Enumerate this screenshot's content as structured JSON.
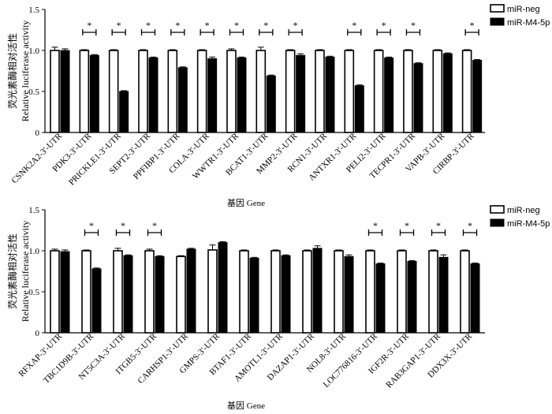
{
  "chart_data": [
    {
      "type": "bar",
      "panel": "top",
      "ylabel_cn": "荧光素酶相对活性",
      "ylabel_en": "Relative luciferase activity",
      "xlabel": "基因  Gene",
      "ylim": [
        0,
        1.5
      ],
      "yticks": [
        "0",
        "0.5",
        "1.0",
        "1.5"
      ],
      "categories": [
        "CSNK2A2-3'-UTR",
        "PDK3-3'-UTR",
        "PRICKLE1-3'-UTR",
        "SEPT2-3'-UTR",
        "PPFIBP1-3'-UTR",
        "COLA-3'-UTR",
        "WWTR1-3'-UTR",
        "BCAT1-3'-UTR",
        "MMP2-3'-UTR",
        "RCN1-3'-UTR",
        "ANTXR1-3'-UTR",
        "PELI2-3'-UTR",
        "TECPR1-3'-UTR",
        "VAPB-3'-UTR",
        "CIRBP-3'-UTR"
      ],
      "series": [
        {
          "name": "miR-neg",
          "values": [
            1.0,
            1.0,
            1.0,
            1.0,
            1.0,
            1.0,
            1.0,
            1.0,
            1.0,
            1.0,
            1.0,
            1.0,
            1.0,
            1.0,
            1.0
          ],
          "errors": [
            0.04,
            0.01,
            0.01,
            0.01,
            0.01,
            0.01,
            0.02,
            0.04,
            0.01,
            0.01,
            0.01,
            0.01,
            0.01,
            0.01,
            0.01
          ]
        },
        {
          "name": "miR-M4-5p",
          "values": [
            1.0,
            0.94,
            0.5,
            0.91,
            0.79,
            0.9,
            0.91,
            0.69,
            0.94,
            0.92,
            0.57,
            0.91,
            0.84,
            0.96,
            0.88
          ],
          "errors": [
            0.02,
            0.01,
            0.01,
            0.01,
            0.01,
            0.02,
            0.01,
            0.01,
            0.02,
            0.01,
            0.01,
            0.01,
            0.01,
            0.01,
            0.01
          ]
        }
      ],
      "significant": [
        false,
        true,
        true,
        true,
        true,
        true,
        true,
        true,
        true,
        false,
        true,
        true,
        true,
        false,
        true
      ],
      "sig_mark": "*"
    },
    {
      "type": "bar",
      "panel": "bottom",
      "ylabel_cn": "荧光素酶相对活性",
      "ylabel_en": "Relative luciferase activity",
      "xlabel": "基因  Gene",
      "ylim": [
        0,
        1.5
      ],
      "yticks": [
        "0",
        "0.5",
        "1.0",
        "1.5"
      ],
      "categories": [
        "RFXAP-3'-UTR",
        "TBC1D9B-3'-UTR",
        "NT5C3A-3'-UTR",
        "ITGB5-3'-UTR",
        "CARHSP1-3'-UTR",
        "GMPS-3'-UTR",
        "BTAF1-3'-UTR",
        "AMOTL1-3'-UTR",
        "DAZAP1-3'-UTR",
        "NOL8-3'-UTR",
        "LOC776816-3'-UTR",
        "IGF2R-3'-UTR",
        "RAB3GAP1-3'-UTR",
        "DDX3X-3'-UTR"
      ],
      "series": [
        {
          "name": "miR-neg",
          "values": [
            1.0,
            1.0,
            1.0,
            1.0,
            0.93,
            1.01,
            1.0,
            1.0,
            1.0,
            1.0,
            1.0,
            1.0,
            1.0,
            1.0
          ],
          "errors": [
            0.02,
            0.01,
            0.03,
            0.02,
            0.01,
            0.06,
            0.01,
            0.01,
            0.01,
            0.01,
            0.01,
            0.01,
            0.01,
            0.01
          ]
        },
        {
          "name": "miR-M4-5p",
          "values": [
            0.99,
            0.78,
            0.94,
            0.93,
            1.02,
            1.1,
            0.91,
            0.94,
            1.03,
            0.93,
            0.84,
            0.87,
            0.92,
            0.84
          ],
          "errors": [
            0.02,
            0.01,
            0.01,
            0.01,
            0.01,
            0.01,
            0.01,
            0.01,
            0.03,
            0.02,
            0.01,
            0.01,
            0.03,
            0.01
          ]
        }
      ],
      "significant": [
        false,
        true,
        true,
        true,
        false,
        false,
        false,
        false,
        false,
        false,
        true,
        true,
        true,
        true
      ],
      "sig_mark": "*"
    }
  ],
  "colors": {
    "bar_neg_fill": "#ffffff",
    "bar_m4_fill": "#000000",
    "stroke": "#000000"
  }
}
